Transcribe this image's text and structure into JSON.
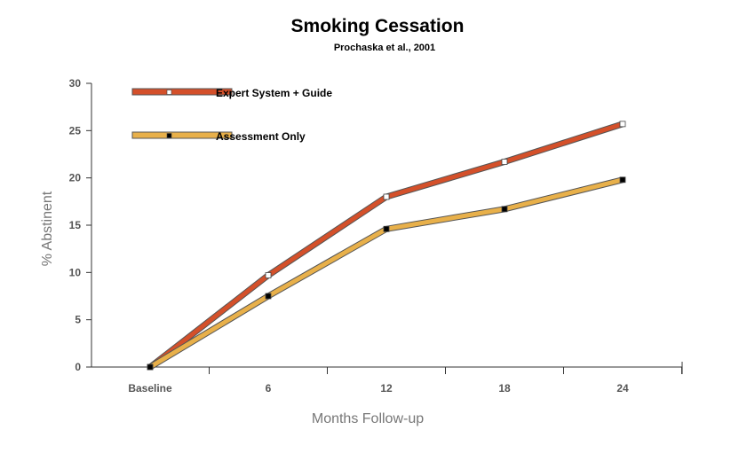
{
  "chart_data": {
    "type": "line",
    "title": "Smoking Cessation",
    "subtitle": "Prochaska et al., 2001",
    "xlabel": "Months Follow-up",
    "ylabel": "% Abstinent",
    "categories": [
      "Baseline",
      "6",
      "12",
      "18",
      "24"
    ],
    "ylim": [
      0,
      30
    ],
    "yticks": [
      0,
      5,
      10,
      15,
      20,
      25,
      30
    ],
    "grid": false,
    "legend_position": "top-left",
    "series": [
      {
        "name": "Expert System + Guide",
        "color": "#d4502a",
        "marker": "white-square",
        "values": [
          0,
          9.7,
          18,
          21.7,
          25.7
        ]
      },
      {
        "name": "Assessment Only",
        "color": "#e8b04a",
        "marker": "black-square",
        "values": [
          0,
          7.5,
          14.6,
          16.7,
          19.8
        ]
      }
    ]
  }
}
